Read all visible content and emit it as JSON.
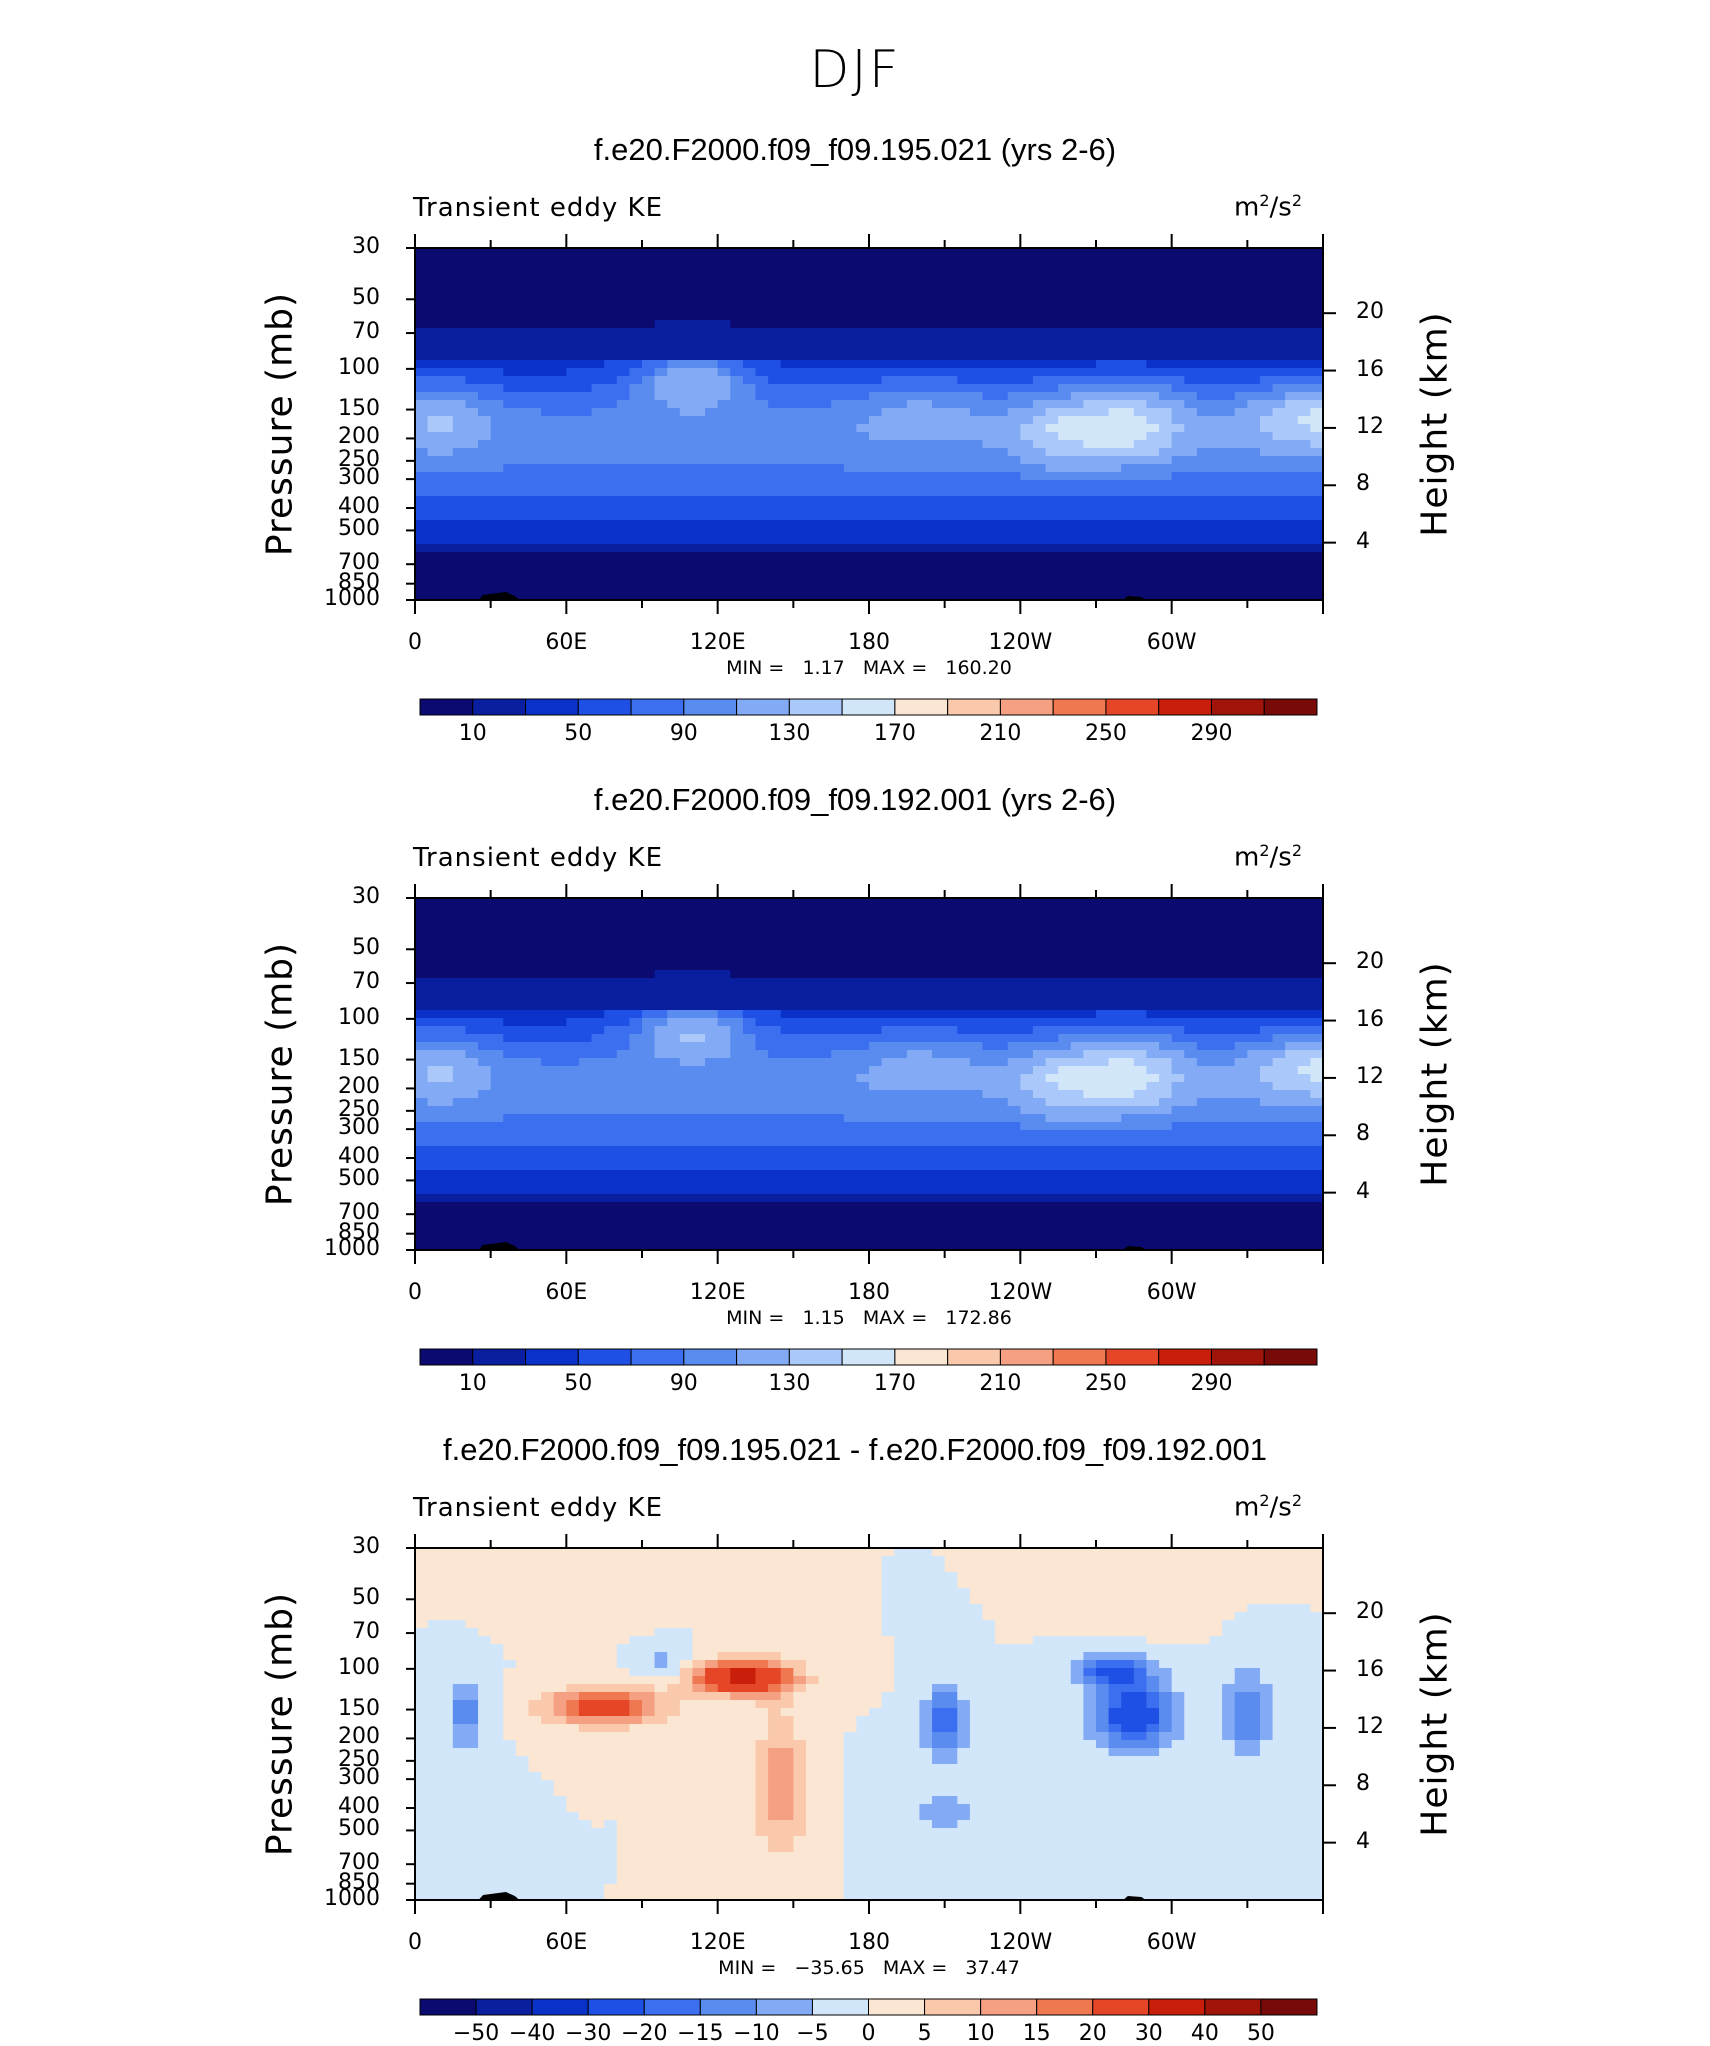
{
  "figure_title": "DJF",
  "chart_data": [
    {
      "type": "contour",
      "title": "f.e20.F2000.f09_f09.195.021 (yrs 2-6)",
      "variable": "Transient eddy KE",
      "units": "m",
      "units_sup1": "2",
      "units_mid": "/s",
      "units_sup2": "2",
      "ylabel": "Pressure (mb)",
      "ylabel_right": "Height (km)",
      "y_ticks": [
        "30",
        "50",
        "70",
        "100",
        "150",
        "200",
        "250",
        "300",
        "400",
        "500",
        "700",
        "850",
        "1000"
      ],
      "y_right_ticks": [
        "20",
        "16",
        "12",
        "8",
        "4"
      ],
      "x_ticks": [
        "0",
        "60E",
        "120E",
        "180",
        "120W",
        "60W"
      ],
      "min_label": "MIN =",
      "min_value": "1.17",
      "max_label": "MAX =",
      "max_value": "160.20",
      "min": 1.17,
      "max": 160.2,
      "colorbar_labels": [
        "10",
        "50",
        "90",
        "130",
        "170",
        "210",
        "250",
        "290"
      ]
    },
    {
      "type": "contour",
      "title": "f.e20.F2000.f09_f09.192.001 (yrs 2-6)",
      "variable": "Transient eddy KE",
      "units": "m",
      "units_sup1": "2",
      "units_mid": "/s",
      "units_sup2": "2",
      "ylabel": "Pressure (mb)",
      "ylabel_right": "Height (km)",
      "y_ticks": [
        "30",
        "50",
        "70",
        "100",
        "150",
        "200",
        "250",
        "300",
        "400",
        "500",
        "700",
        "850",
        "1000"
      ],
      "y_right_ticks": [
        "20",
        "16",
        "12",
        "8",
        "4"
      ],
      "x_ticks": [
        "0",
        "60E",
        "120E",
        "180",
        "120W",
        "60W"
      ],
      "min_label": "MIN =",
      "min_value": "1.15",
      "max_label": "MAX =",
      "max_value": "172.86",
      "min": 1.15,
      "max": 172.86,
      "colorbar_labels": [
        "10",
        "50",
        "90",
        "130",
        "170",
        "210",
        "250",
        "290"
      ]
    },
    {
      "type": "contour",
      "title": "f.e20.F2000.f09_f09.195.021 - f.e20.F2000.f09_f09.192.001",
      "variable": "Transient eddy KE",
      "units": "m",
      "units_sup1": "2",
      "units_mid": "/s",
      "units_sup2": "2",
      "ylabel": "Pressure (mb)",
      "ylabel_right": "Height (km)",
      "y_ticks": [
        "30",
        "50",
        "70",
        "100",
        "150",
        "200",
        "250",
        "300",
        "400",
        "500",
        "700",
        "850",
        "1000"
      ],
      "y_right_ticks": [
        "20",
        "16",
        "12",
        "8",
        "4"
      ],
      "x_ticks": [
        "0",
        "60E",
        "120E",
        "180",
        "120W",
        "60W"
      ],
      "min_label": "MIN =",
      "min_value": "−35.65",
      "max_label": "MAX =",
      "max_value": "37.47",
      "min": -35.65,
      "max": 37.47,
      "colorbar_labels": [
        "−50",
        "−40",
        "−30",
        "−20",
        "−15",
        "−10",
        "−5",
        "0",
        "5",
        "10",
        "15",
        "20",
        "30",
        "40",
        "50"
      ]
    }
  ],
  "colors": {
    "seq": [
      "#0a0a70",
      "#0a1ea0",
      "#0a32c8",
      "#1e50e6",
      "#3c6ef0",
      "#5a8cf0",
      "#82aaf5",
      "#aac8fa",
      "#d2e6fa",
      "#fae6d2",
      "#fac8aa",
      "#f5a082",
      "#f07850",
      "#e64628",
      "#c81e0a",
      "#a0140a",
      "#780a0a"
    ],
    "div": [
      "#0a0a70",
      "#0a1ea0",
      "#0a32c8",
      "#1e50e6",
      "#3c6ef0",
      "#5a8cf0",
      "#82aaf5",
      "#d2e6fa",
      "#fae6d2",
      "#fac8aa",
      "#f5a082",
      "#f07850",
      "#e64628",
      "#c81e0a",
      "#a0140a",
      "#780a0a"
    ]
  }
}
